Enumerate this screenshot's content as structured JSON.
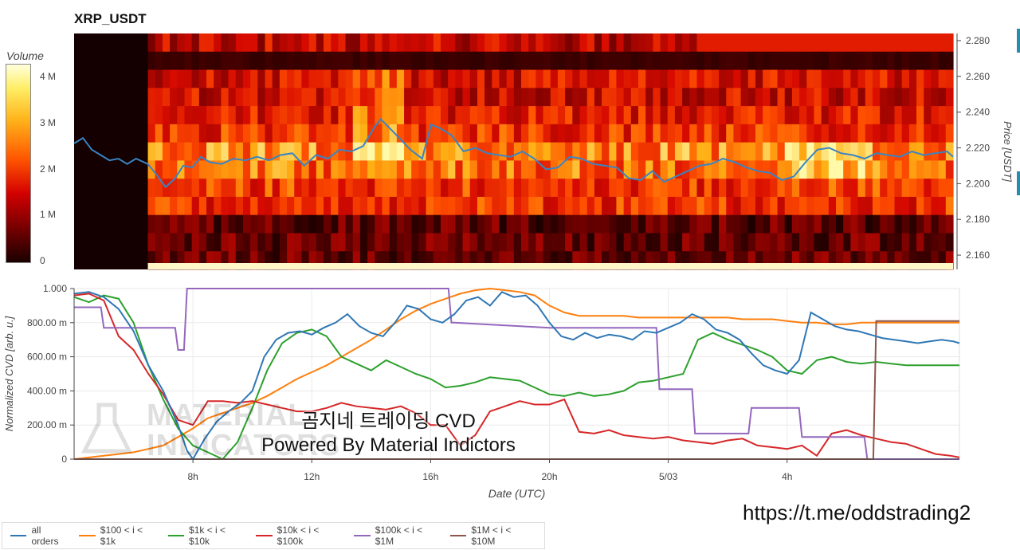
{
  "title": "XRP_USDT",
  "colorbar": {
    "title": "Volume",
    "ticks": [
      {
        "label": "4 M",
        "value": 4
      },
      {
        "label": "3 M",
        "value": 3
      },
      {
        "label": "2 M",
        "value": 2
      },
      {
        "label": "1 M",
        "value": 1
      },
      {
        "label": "0",
        "value": 0
      }
    ],
    "max": 4.3
  },
  "overlay_text": {
    "line1": "곰지네 트레이딩 CVD",
    "line2": "Powered By Material Indictors"
  },
  "watermark": {
    "line1": "MATERIAL",
    "line2": "INDICATORS"
  },
  "channel_url": "https://t.me/oddstrading2",
  "colors": {
    "all_orders": "#2f77b4",
    "100_1k": "#ff7f0e",
    "1k_10k": "#2ca02c",
    "10k_100k": "#d62728",
    "100k_1M": "#9467bd",
    "1M_10M": "#8c564b"
  },
  "chart_data": [
    {
      "type": "heatmap",
      "title": "XRP_USDT",
      "ylabel": "Price [USDT]",
      "ylim": [
        2.152,
        2.284
      ],
      "yticks": [
        "2.280",
        "2.260",
        "2.240",
        "2.220",
        "2.200",
        "2.180",
        "2.160"
      ],
      "ytick_values": [
        2.28,
        2.26,
        2.24,
        2.22,
        2.2,
        2.18,
        2.16
      ],
      "x_range_hours": [
        4,
        33.8
      ],
      "heatmap_start_hour": 6.5,
      "series": [
        {
          "name": "price",
          "x": [
            4,
            4.3,
            4.6,
            4.9,
            5.2,
            5.5,
            5.8,
            6.1,
            6.5,
            6.8,
            7.1,
            7.4,
            7.7,
            8.0,
            8.3,
            8.6,
            9.0,
            9.4,
            9.8,
            10.2,
            10.6,
            11.0,
            11.4,
            11.8,
            12.2,
            12.6,
            13.0,
            13.4,
            13.8,
            14.2,
            14.4,
            14.7,
            15.0,
            15.4,
            15.8,
            16.1,
            16.4,
            16.8,
            17.2,
            17.6,
            18.0,
            18.4,
            18.8,
            19.2,
            19.6,
            20.0,
            20.4,
            20.8,
            21.2,
            21.6,
            22.0,
            22.4,
            22.8,
            23.2,
            23.6,
            24.0,
            24.4,
            24.8,
            25.2,
            25.6,
            26.0,
            26.4,
            26.8,
            27.2,
            27.6,
            28.0,
            28.4,
            28.8,
            29.2,
            29.6,
            30.0,
            30.4,
            30.8,
            31.2,
            31.6,
            32.0,
            32.4,
            32.8,
            33.2,
            33.6,
            33.8
          ],
          "values": [
            2.2225,
            2.2255,
            2.219,
            2.216,
            2.213,
            2.214,
            2.211,
            2.214,
            2.211,
            2.205,
            2.198,
            2.2025,
            2.21,
            2.209,
            2.215,
            2.212,
            2.211,
            2.214,
            2.213,
            2.215,
            2.213,
            2.216,
            2.217,
            2.21,
            2.216,
            2.214,
            2.219,
            2.218,
            2.221,
            2.232,
            2.236,
            2.231,
            2.226,
            2.219,
            2.214,
            2.233,
            2.231,
            2.227,
            2.218,
            2.22,
            2.217,
            2.216,
            2.215,
            2.218,
            2.214,
            2.208,
            2.209,
            2.215,
            2.214,
            2.211,
            2.21,
            2.209,
            2.203,
            2.202,
            2.207,
            2.201,
            2.204,
            2.207,
            2.21,
            2.211,
            2.214,
            2.212,
            2.209,
            2.207,
            2.206,
            2.202,
            2.204,
            2.212,
            2.219,
            2.22,
            2.217,
            2.216,
            2.214,
            2.217,
            2.216,
            2.215,
            2.218,
            2.216,
            2.217,
            2.218,
            2.215
          ]
        }
      ]
    },
    {
      "type": "line",
      "xlabel": "Date (UTC)",
      "ylabel": "Normalized CVD [arb. u.]",
      "ylim": [
        0,
        1.0
      ],
      "x_range_hours": [
        4,
        33.8
      ],
      "xticks": [
        "8h",
        "12h",
        "16h",
        "20h",
        "5/03",
        "4h"
      ],
      "xtick_hours": [
        8,
        12,
        16,
        20,
        24,
        28
      ],
      "yticks": [
        "0",
        "200.00 m",
        "400.00 m",
        "600.00 m",
        "800.00 m",
        "1.000"
      ],
      "ytick_values": [
        0,
        0.2,
        0.4,
        0.6,
        0.8,
        1.0
      ],
      "series": [
        {
          "name": "all orders",
          "x": [
            4,
            4.5,
            5.0,
            5.5,
            6.0,
            6.5,
            7.0,
            7.5,
            7.8,
            8.0,
            8.4,
            8.8,
            9.2,
            9.6,
            10.0,
            10.4,
            10.8,
            11.2,
            11.6,
            12.0,
            12.4,
            12.8,
            13.2,
            13.6,
            14.0,
            14.4,
            14.8,
            15.2,
            15.6,
            16.0,
            16.4,
            16.8,
            17.2,
            17.6,
            18.0,
            18.4,
            18.8,
            19.2,
            19.6,
            20.0,
            20.4,
            20.8,
            21.2,
            21.6,
            22.0,
            22.4,
            22.8,
            23.2,
            23.6,
            24.0,
            24.4,
            24.8,
            25.2,
            25.6,
            26.0,
            26.4,
            26.8,
            27.2,
            27.6,
            28.0,
            28.4,
            28.8,
            29.2,
            29.6,
            30.0,
            30.4,
            30.8,
            31.2,
            31.6,
            32.0,
            32.4,
            32.8,
            33.2,
            33.6,
            33.8
          ],
          "values": [
            0.97,
            0.98,
            0.95,
            0.88,
            0.75,
            0.55,
            0.4,
            0.2,
            0.05,
            0.0,
            0.12,
            0.22,
            0.28,
            0.33,
            0.4,
            0.6,
            0.7,
            0.74,
            0.75,
            0.73,
            0.77,
            0.8,
            0.85,
            0.78,
            0.74,
            0.72,
            0.8,
            0.9,
            0.88,
            0.82,
            0.8,
            0.85,
            0.93,
            0.95,
            0.9,
            0.98,
            0.95,
            0.96,
            0.9,
            0.8,
            0.72,
            0.7,
            0.74,
            0.71,
            0.73,
            0.72,
            0.7,
            0.75,
            0.74,
            0.77,
            0.8,
            0.85,
            0.82,
            0.76,
            0.74,
            0.7,
            0.62,
            0.55,
            0.52,
            0.5,
            0.58,
            0.86,
            0.82,
            0.78,
            0.76,
            0.75,
            0.73,
            0.71,
            0.7,
            0.69,
            0.68,
            0.69,
            0.7,
            0.69,
            0.68
          ]
        },
        {
          "name": "$100 < i < $1k",
          "x": [
            4,
            4.5,
            5.0,
            5.5,
            6.0,
            6.5,
            7.0,
            7.5,
            8.0,
            8.5,
            9.0,
            9.5,
            10.0,
            10.5,
            11.0,
            11.5,
            12.0,
            12.5,
            13.0,
            13.5,
            14.0,
            14.5,
            15.0,
            15.5,
            16.0,
            16.5,
            17.0,
            17.5,
            18.0,
            18.5,
            19.0,
            19.5,
            20.0,
            20.5,
            21.0,
            21.5,
            22.0,
            22.5,
            23.0,
            23.5,
            24.0,
            24.5,
            25.0,
            25.5,
            26.0,
            26.5,
            27.0,
            27.5,
            28.0,
            28.5,
            29.0,
            29.5,
            30.0,
            30.5,
            31.0,
            31.5,
            32.0,
            32.5,
            33.0,
            33.5,
            33.8
          ],
          "values": [
            0.0,
            0.01,
            0.02,
            0.03,
            0.04,
            0.06,
            0.08,
            0.13,
            0.18,
            0.24,
            0.27,
            0.3,
            0.33,
            0.37,
            0.42,
            0.47,
            0.51,
            0.55,
            0.6,
            0.65,
            0.7,
            0.76,
            0.82,
            0.87,
            0.91,
            0.94,
            0.97,
            0.99,
            1.0,
            0.99,
            0.98,
            0.96,
            0.9,
            0.86,
            0.84,
            0.84,
            0.84,
            0.84,
            0.83,
            0.83,
            0.83,
            0.83,
            0.83,
            0.83,
            0.83,
            0.82,
            0.82,
            0.82,
            0.81,
            0.8,
            0.8,
            0.79,
            0.79,
            0.8,
            0.8,
            0.8,
            0.8,
            0.8,
            0.8,
            0.8,
            0.8
          ]
        },
        {
          "name": "$1k < i < $10k",
          "x": [
            4,
            4.5,
            5.0,
            5.5,
            6.0,
            6.5,
            7.0,
            7.5,
            8.0,
            8.5,
            9.0,
            9.5,
            10.0,
            10.5,
            11.0,
            11.5,
            12.0,
            12.5,
            13.0,
            13.5,
            14.0,
            14.5,
            15.0,
            15.5,
            16.0,
            16.5,
            17.0,
            17.5,
            18.0,
            18.5,
            19.0,
            19.5,
            20.0,
            20.5,
            21.0,
            21.5,
            22.0,
            22.5,
            23.0,
            23.5,
            24.0,
            24.5,
            25.0,
            25.5,
            26.0,
            26.5,
            27.0,
            27.5,
            28.0,
            28.5,
            29.0,
            29.5,
            30.0,
            30.5,
            31.0,
            31.5,
            32.0,
            32.5,
            33.0,
            33.5,
            33.8
          ],
          "values": [
            0.95,
            0.92,
            0.96,
            0.94,
            0.8,
            0.55,
            0.35,
            0.18,
            0.08,
            0.04,
            0.0,
            0.1,
            0.3,
            0.52,
            0.68,
            0.74,
            0.76,
            0.72,
            0.6,
            0.56,
            0.52,
            0.58,
            0.54,
            0.5,
            0.47,
            0.42,
            0.43,
            0.45,
            0.48,
            0.47,
            0.46,
            0.42,
            0.38,
            0.37,
            0.39,
            0.37,
            0.38,
            0.4,
            0.45,
            0.46,
            0.48,
            0.5,
            0.7,
            0.74,
            0.7,
            0.67,
            0.64,
            0.6,
            0.52,
            0.5,
            0.58,
            0.6,
            0.57,
            0.56,
            0.57,
            0.56,
            0.55,
            0.55,
            0.55,
            0.55,
            0.55
          ]
        },
        {
          "name": "$10k < i < $100k",
          "x": [
            4,
            4.5,
            5.0,
            5.5,
            6.0,
            6.5,
            7.0,
            7.5,
            8.0,
            8.5,
            9.0,
            9.5,
            10.0,
            10.5,
            11.0,
            11.5,
            12.0,
            12.5,
            13.0,
            13.5,
            14.0,
            14.5,
            15.0,
            15.5,
            16.0,
            16.5,
            17.0,
            17.5,
            18.0,
            18.5,
            19.0,
            19.5,
            20.0,
            20.5,
            21.0,
            21.5,
            22.0,
            22.5,
            23.0,
            23.5,
            24.0,
            24.5,
            25.0,
            25.5,
            26.0,
            26.5,
            27.0,
            27.5,
            28.0,
            28.5,
            29.0,
            29.5,
            30.0,
            30.5,
            31.0,
            31.5,
            32.0,
            32.5,
            33.0,
            33.5,
            33.8
          ],
          "values": [
            0.96,
            0.97,
            0.93,
            0.72,
            0.64,
            0.5,
            0.38,
            0.23,
            0.2,
            0.34,
            0.34,
            0.33,
            0.34,
            0.32,
            0.3,
            0.28,
            0.28,
            0.3,
            0.33,
            0.31,
            0.3,
            0.29,
            0.31,
            0.27,
            0.2,
            0.2,
            0.08,
            0.14,
            0.28,
            0.31,
            0.34,
            0.32,
            0.32,
            0.35,
            0.16,
            0.15,
            0.17,
            0.14,
            0.13,
            0.12,
            0.13,
            0.11,
            0.1,
            0.09,
            0.11,
            0.12,
            0.08,
            0.07,
            0.06,
            0.08,
            0.02,
            0.15,
            0.17,
            0.14,
            0.12,
            0.1,
            0.09,
            0.06,
            0.03,
            0.02,
            0.01
          ]
        },
        {
          "name": "$100k < i < $1M",
          "x": [
            4,
            4.9,
            5.0,
            5.9,
            6.0,
            7.4,
            7.5,
            7.7,
            7.8,
            8.4,
            8.5,
            16.6,
            16.7,
            16.8,
            20.0,
            23.6,
            23.7,
            24.2,
            24.3,
            24.8,
            24.9,
            26.7,
            26.8,
            28.4,
            28.5,
            30.6,
            30.7,
            33.8
          ],
          "values": [
            0.89,
            0.89,
            0.77,
            0.77,
            0.77,
            0.77,
            0.64,
            0.64,
            1.0,
            1.0,
            1.0,
            1.0,
            0.8,
            0.8,
            0.77,
            0.77,
            0.41,
            0.41,
            0.41,
            0.41,
            0.15,
            0.15,
            0.3,
            0.3,
            0.13,
            0.13,
            0.0,
            0.0
          ]
        },
        {
          "name": "$1M < i < $10M",
          "x": [
            4,
            29.2,
            29.3,
            30.9,
            31.0,
            32.0,
            33.0,
            33.8
          ],
          "values": [
            0.0,
            0.0,
            0.0,
            0.0,
            0.81,
            0.81,
            0.81,
            0.81
          ]
        }
      ],
      "legend_position": "bottom-left"
    }
  ]
}
